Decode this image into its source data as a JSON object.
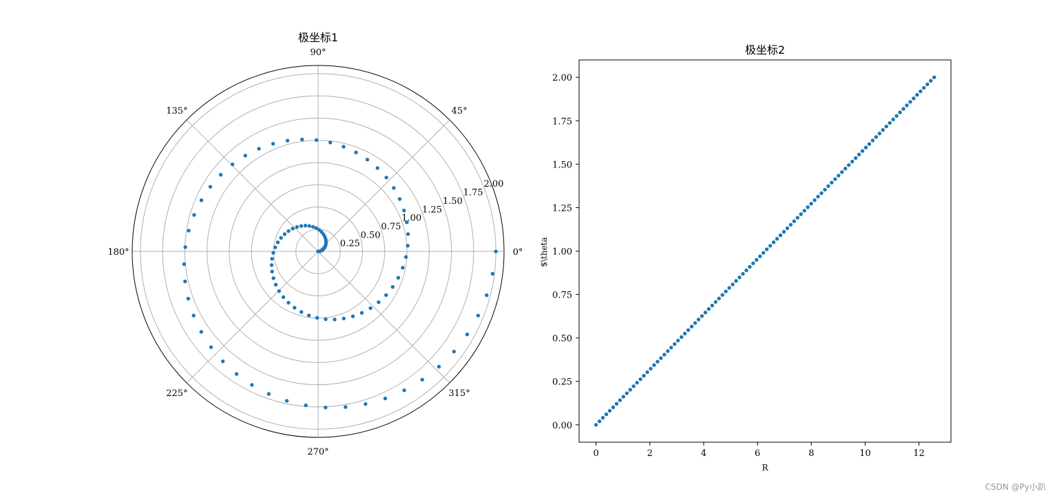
{
  "chart_data": [
    {
      "type": "scatter",
      "projection": "polar",
      "title": "极坐标1",
      "theta_unit": "radians",
      "theta_range": [
        0,
        12.566
      ],
      "r_range": [
        0,
        2.0
      ],
      "n_points": 100,
      "series": [
        {
          "formula": "r = theta / (2*pi)",
          "color": "#1f77b4"
        }
      ],
      "angle_tick_labels": [
        "0°",
        "45°",
        "90°",
        "135°",
        "180°",
        "225°",
        "270°",
        "315°"
      ],
      "radial_ticks": [
        0.25,
        0.5,
        0.75,
        1.0,
        1.25,
        1.5,
        1.75,
        2.0
      ],
      "radial_tick_labels": [
        "0.25",
        "0.50",
        "0.75",
        "1.00",
        "1.25",
        "1.50",
        "1.75",
        "2.00"
      ],
      "grid": true
    },
    {
      "type": "scatter",
      "title": "极坐标2",
      "xlabel": "R",
      "ylabel": "$\\theta",
      "x_range": [
        0,
        12.566
      ],
      "y_range": [
        0,
        2.0
      ],
      "n_points": 100,
      "xlim": [
        -0.63,
        13.19
      ],
      "ylim": [
        -0.1,
        2.1
      ],
      "x_ticks": [
        0,
        2,
        4,
        6,
        8,
        10,
        12
      ],
      "x_tick_labels": [
        "0",
        "2",
        "4",
        "6",
        "8",
        "10",
        "12"
      ],
      "y_ticks": [
        0,
        0.25,
        0.5,
        0.75,
        1.0,
        1.25,
        1.5,
        1.75,
        2.0
      ],
      "y_tick_labels": [
        "0.00",
        "0.25",
        "0.50",
        "0.75",
        "1.00",
        "1.25",
        "1.50",
        "1.75",
        "2.00"
      ],
      "color": "#1f77b4",
      "grid": false
    }
  ],
  "watermark": "CSDN @Py小趴"
}
